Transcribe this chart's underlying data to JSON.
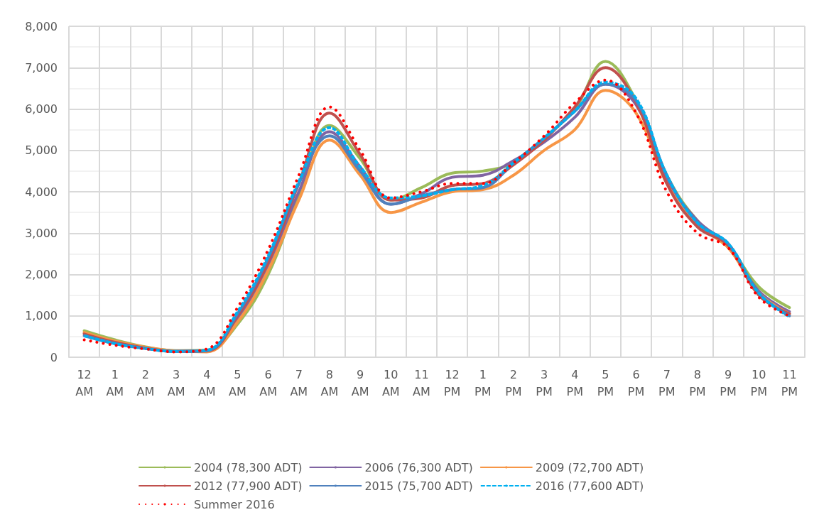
{
  "chart_data": {
    "type": "line",
    "categories": [
      "12 AM",
      "1 AM",
      "2 AM",
      "3 AM",
      "4 AM",
      "5 AM",
      "6 AM",
      "7 AM",
      "8 AM",
      "9 AM",
      "10 AM",
      "11 AM",
      "12 PM",
      "1 PM",
      "2 PM",
      "3 PM",
      "4 PM",
      "5 PM",
      "6 PM",
      "7 PM",
      "8 PM",
      "9 PM",
      "10 PM",
      "11 PM"
    ],
    "ylim": [
      0,
      8000
    ],
    "yticks": [
      {
        "value": 0,
        "label": "0"
      },
      {
        "value": 1000,
        "label": "1,000"
      },
      {
        "value": 2000,
        "label": "2,000"
      },
      {
        "value": 3000,
        "label": "3,000"
      },
      {
        "value": 4000,
        "label": "4,000"
      },
      {
        "value": 5000,
        "label": "5,000"
      },
      {
        "value": 6000,
        "label": "6,000"
      },
      {
        "value": 7000,
        "label": "7,000"
      },
      {
        "value": 8000,
        "label": "8,000"
      }
    ],
    "grid": true,
    "legend": "bottom",
    "marker": "none",
    "series": [
      {
        "name": "2004 (78,300 ADT)",
        "color": "#9bbb59",
        "line_style": "solid",
        "values": [
          640,
          420,
          250,
          160,
          170,
          800,
          2000,
          3900,
          5600,
          4800,
          3800,
          4100,
          4450,
          4500,
          4700,
          5300,
          6000,
          7150,
          6200,
          4400,
          3300,
          2700,
          1700,
          1200
        ]
      },
      {
        "name": "2006 (76,300 ADT)",
        "color": "#8064a2",
        "line_style": "solid",
        "values": [
          580,
          380,
          230,
          150,
          150,
          900,
          2200,
          4000,
          5450,
          4600,
          3700,
          3950,
          4350,
          4400,
          4750,
          5200,
          5800,
          6600,
          6100,
          4300,
          3300,
          2700,
          1600,
          1100
        ]
      },
      {
        "name": "2009 (72,700 ADT)",
        "color": "#f79646",
        "line_style": "solid",
        "values": [
          600,
          390,
          240,
          150,
          130,
          850,
          2100,
          3800,
          5250,
          4400,
          3500,
          3750,
          4000,
          4050,
          4400,
          5000,
          5500,
          6450,
          5900,
          4200,
          3200,
          2650,
          1550,
          1050
        ]
      },
      {
        "name": "2012 (77,900 ADT)",
        "color": "#c0504d",
        "line_style": "solid",
        "values": [
          560,
          360,
          220,
          140,
          150,
          1000,
          2300,
          4200,
          5900,
          4900,
          3800,
          3850,
          4150,
          4200,
          4650,
          5250,
          6050,
          7000,
          6150,
          4200,
          3150,
          2700,
          1500,
          1050
        ]
      },
      {
        "name": "2015 (75,700 ADT)",
        "color": "#4f81bd",
        "line_style": "solid",
        "values": [
          520,
          330,
          210,
          140,
          160,
          1050,
          2400,
          4200,
          5350,
          4500,
          3700,
          3900,
          4050,
          4100,
          4700,
          5300,
          5950,
          6600,
          6200,
          4400,
          3250,
          2750,
          1550,
          1000
        ]
      },
      {
        "name": "2016 (77,600 ADT)",
        "color": "#00b0f0",
        "line_style": "dashed",
        "values": [
          520,
          330,
          210,
          140,
          170,
          1100,
          2450,
          4250,
          5550,
          4600,
          3850,
          3900,
          4050,
          4150,
          4700,
          5300,
          5950,
          6650,
          6250,
          4400,
          3250,
          2750,
          1550,
          980
        ]
      },
      {
        "name": "Summer 2016",
        "color": "#ff0000",
        "line_style": "dotted",
        "values": [
          420,
          290,
          200,
          130,
          200,
          1200,
          2600,
          4400,
          6050,
          5000,
          3850,
          4000,
          4200,
          4200,
          4700,
          5350,
          6150,
          6700,
          5900,
          4000,
          3000,
          2650,
          1450,
          1000
        ]
      }
    ]
  }
}
